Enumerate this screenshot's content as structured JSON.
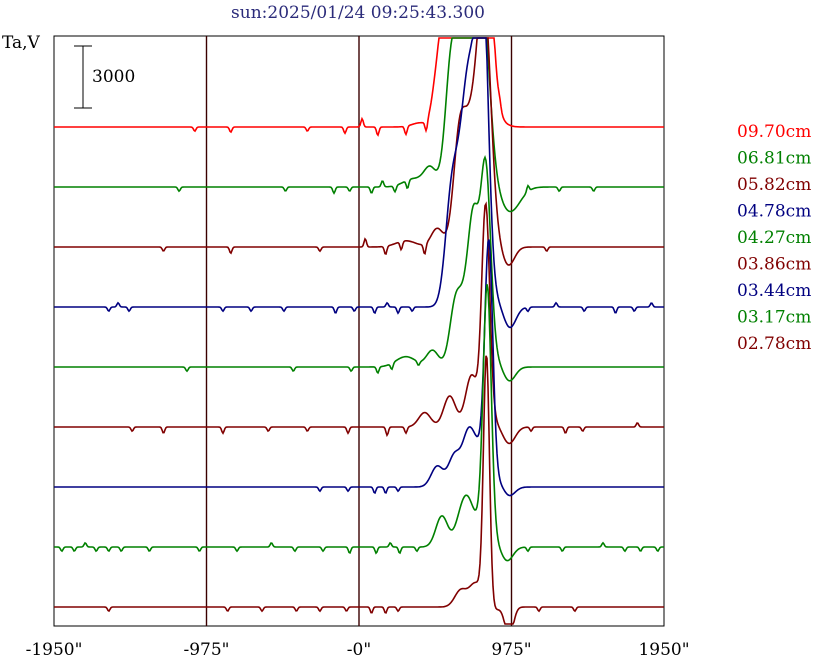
{
  "chart_data": {
    "type": "line",
    "title": "sun:2025/01/24 09:25:43.300",
    "ylabel": "Ta,V",
    "scale_bar_label": "3000",
    "scale_bar_value": 3000,
    "x_ticks": [
      {
        "value": -1950,
        "label": "-1950\""
      },
      {
        "value": -975,
        "label": "-975\""
      },
      {
        "value": 0,
        "label": "-0\""
      },
      {
        "value": 975,
        "label": "975\""
      },
      {
        "value": 1950,
        "label": "1950\""
      }
    ],
    "xlim": [
      -1950,
      1950
    ],
    "vlines": [
      -975,
      0,
      975
    ],
    "legend_position": "right",
    "series": [
      {
        "name": "09.70cm",
        "color": "#ff0000",
        "peaks": [
          [
            390,
            -200,
            8
          ],
          [
            485,
            -800,
            4
          ],
          [
            560,
            -7000,
            7
          ],
          [
            690,
            -7000,
            8
          ],
          [
            740,
            -4000,
            9
          ],
          [
            820,
            -7200,
            6
          ],
          [
            880,
            -300,
            8
          ]
        ],
        "noise": [
          [
            -1050,
            200
          ],
          [
            -820,
            250
          ],
          [
            -330,
            200
          ],
          [
            -90,
            300
          ],
          [
            20,
            -400
          ],
          [
            120,
            400
          ],
          [
            300,
            400
          ],
          [
            430,
            500
          ],
          [
            900,
            -250
          ]
        ]
      },
      {
        "name": "06.81cm",
        "color": "#008000",
        "peaks": [
          [
            350,
            -400,
            10
          ],
          [
            455,
            -900,
            6
          ],
          [
            590,
            -5500,
            6
          ],
          [
            680,
            -7000,
            8
          ],
          [
            760,
            -6500,
            6
          ],
          [
            810,
            -5000,
            6
          ],
          [
            870,
            -300,
            6
          ],
          [
            965,
            1200,
            10
          ]
        ],
        "noise": [
          [
            -1150,
            200
          ],
          [
            -470,
            200
          ],
          [
            -160,
            300
          ],
          [
            -60,
            200
          ],
          [
            80,
            300
          ],
          [
            150,
            -300
          ],
          [
            230,
            300
          ],
          [
            310,
            400
          ],
          [
            1080,
            -300
          ],
          [
            1280,
            200
          ],
          [
            1500,
            200
          ]
        ]
      },
      {
        "name": "05.82cm",
        "color": "#800000",
        "peaks": [
          [
            300,
            -300,
            10
          ],
          [
            500,
            -900,
            6
          ],
          [
            640,
            -4500,
            6
          ],
          [
            720,
            -5500,
            8
          ],
          [
            780,
            -3500,
            6
          ],
          [
            810,
            -8000,
            6
          ],
          [
            860,
            -500,
            6
          ],
          [
            955,
            900,
            6
          ]
        ],
        "noise": [
          [
            -1250,
            200
          ],
          [
            -820,
            300
          ],
          [
            -250,
            200
          ],
          [
            40,
            -400
          ],
          [
            170,
            400
          ],
          [
            270,
            400
          ],
          [
            420,
            500
          ],
          [
            1200,
            200
          ]
        ]
      },
      {
        "name": "04.78cm",
        "color": "#000080",
        "peaks": [
          [
            585,
            -3500,
            6
          ],
          [
            650,
            -5500,
            8
          ],
          [
            700,
            -6000,
            6
          ],
          [
            760,
            -8500,
            6
          ],
          [
            800,
            -10500,
            5
          ],
          [
            860,
            -500,
            6
          ],
          [
            965,
            1000,
            6
          ]
        ],
        "noise": [
          [
            -1600,
            200
          ],
          [
            -1540,
            -200
          ],
          [
            -1470,
            200
          ],
          [
            -870,
            200
          ],
          [
            -690,
            200
          ],
          [
            -480,
            200
          ],
          [
            -150,
            300
          ],
          [
            -30,
            200
          ],
          [
            100,
            300
          ],
          [
            180,
            -200
          ],
          [
            250,
            300
          ],
          [
            340,
            200
          ],
          [
            1080,
            200
          ],
          [
            1260,
            -200
          ],
          [
            1440,
            200
          ],
          [
            1640,
            300
          ],
          [
            1760,
            200
          ],
          [
            1870,
            -200
          ]
        ]
      },
      {
        "name": "04.27cm",
        "color": "#008000",
        "peaks": [
          [
            300,
            -500,
            10
          ],
          [
            470,
            -800,
            6
          ],
          [
            620,
            -3200,
            6
          ],
          [
            700,
            -3500,
            6
          ],
          [
            740,
            -5000,
            5
          ],
          [
            810,
            -9500,
            5
          ],
          [
            880,
            -300,
            6
          ],
          [
            960,
            700,
            6
          ]
        ],
        "noise": [
          [
            -1100,
            200
          ],
          [
            -420,
            200
          ],
          [
            -50,
            200
          ],
          [
            120,
            300
          ],
          [
            210,
            300
          ],
          [
            380,
            200
          ]
        ]
      },
      {
        "name": "03.86cm",
        "color": "#800000",
        "peaks": [
          [
            420,
            -700,
            6
          ],
          [
            580,
            -1500,
            6
          ],
          [
            720,
            -2500,
            6
          ],
          [
            810,
            -10500,
            4
          ],
          [
            850,
            -300,
            6
          ],
          [
            960,
            800,
            6
          ]
        ],
        "noise": [
          [
            -1450,
            200
          ],
          [
            -1250,
            300
          ],
          [
            -870,
            300
          ],
          [
            -580,
            200
          ],
          [
            -330,
            200
          ],
          [
            -70,
            300
          ],
          [
            180,
            400
          ],
          [
            300,
            300
          ],
          [
            1100,
            200
          ],
          [
            1320,
            300
          ],
          [
            1430,
            200
          ],
          [
            1780,
            -200
          ]
        ]
      },
      {
        "name": "03.44cm",
        "color": "#000080",
        "peaks": [
          [
            500,
            -1000,
            6
          ],
          [
            610,
            -1500,
            6
          ],
          [
            700,
            -2500,
            6
          ],
          [
            770,
            -1500,
            6
          ],
          [
            830,
            -11500,
            4
          ],
          [
            900,
            -300,
            6
          ],
          [
            955,
            500,
            6
          ]
        ],
        "noise": [
          [
            -250,
            200
          ],
          [
            -70,
            200
          ],
          [
            100,
            300
          ],
          [
            170,
            300
          ],
          [
            250,
            200
          ]
        ]
      },
      {
        "name": "03.17cm",
        "color": "#008000",
        "peaks": [
          [
            530,
            -1500,
            6
          ],
          [
            650,
            -1200,
            6
          ],
          [
            700,
            -1800,
            6
          ],
          [
            780,
            -1000,
            6
          ],
          [
            820,
            -12000,
            4
          ],
          [
            870,
            -300,
            6
          ],
          [
            945,
            700,
            6
          ]
        ],
        "noise": [
          [
            -1900,
            200
          ],
          [
            -1820,
            200
          ],
          [
            -1750,
            -200
          ],
          [
            -1680,
            200
          ],
          [
            -1600,
            200
          ],
          [
            -1520,
            200
          ],
          [
            -1340,
            200
          ],
          [
            -1020,
            200
          ],
          [
            -780,
            200
          ],
          [
            -560,
            -200
          ],
          [
            -410,
            200
          ],
          [
            -230,
            200
          ],
          [
            -60,
            300
          ],
          [
            110,
            300
          ],
          [
            200,
            -200
          ],
          [
            260,
            300
          ],
          [
            370,
            200
          ],
          [
            1080,
            200
          ],
          [
            1300,
            200
          ],
          [
            1560,
            -200
          ],
          [
            1700,
            200
          ],
          [
            1800,
            200
          ],
          [
            1910,
            200
          ]
        ]
      },
      {
        "name": "02.78cm",
        "color": "#800000",
        "peaks": [
          [
            650,
            -800,
            6
          ],
          [
            740,
            -1000,
            6
          ],
          [
            790,
            -300,
            6
          ],
          [
            815,
            -12000,
            3
          ],
          [
            850,
            200,
            6
          ],
          [
            960,
            1500,
            4
          ]
        ],
        "noise": [
          [
            -1600,
            200
          ],
          [
            -840,
            200
          ],
          [
            -620,
            200
          ],
          [
            -400,
            200
          ],
          [
            -250,
            200
          ],
          [
            -80,
            200
          ],
          [
            80,
            300
          ],
          [
            170,
            300
          ],
          [
            250,
            200
          ],
          [
            1150,
            200
          ],
          [
            1380,
            200
          ]
        ]
      }
    ]
  }
}
